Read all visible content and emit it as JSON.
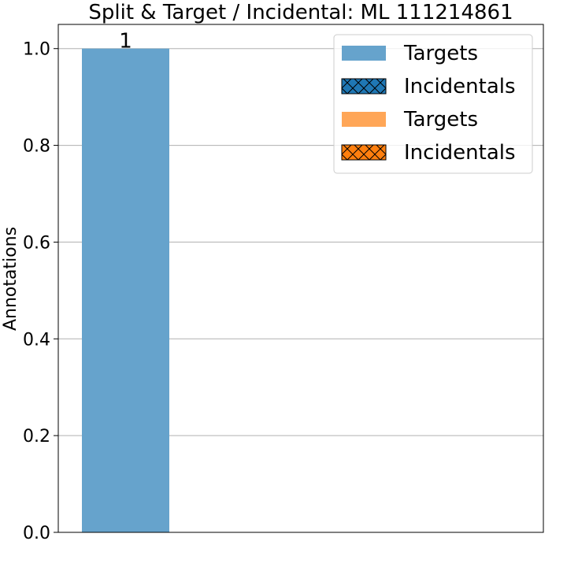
{
  "chart_data": {
    "type": "bar",
    "title": "Split & Target / Incidental: ML 111214861",
    "xlabel": "",
    "ylabel": "Annotations",
    "ylim": [
      0,
      1.05
    ],
    "yticks": [
      "0.0",
      "0.2",
      "0.4",
      "0.6",
      "0.8",
      "1.0"
    ],
    "ytick_values": [
      0,
      0.2,
      0.4,
      0.6,
      0.8,
      1.0
    ],
    "grid": "horizontal",
    "categories": [
      ""
    ],
    "series": [
      {
        "name": "Targets",
        "values": [
          1
        ],
        "color": "#66a3cc",
        "hatch": false
      },
      {
        "name": "Incidentals",
        "values": [
          0
        ],
        "color": "#1f77b4",
        "hatch": true
      },
      {
        "name": "Targets",
        "values": [
          0
        ],
        "color": "#ffa657",
        "hatch": false
      },
      {
        "name": "Incidentals",
        "values": [
          0
        ],
        "color": "#ff7f0e",
        "hatch": true
      }
    ],
    "bar_labels": [
      "1"
    ],
    "legend_position": "top-right"
  }
}
